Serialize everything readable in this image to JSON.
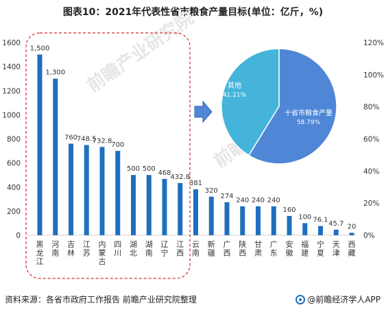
{
  "title": "图表10：2021年代表性省市粮食产量目标(单位：亿斤，%)",
  "footer": {
    "source": "资料来源：各省市政府工作报告 前瞻产业研究院整理",
    "brand": "@前瞻经济学人APP"
  },
  "watermark": "前瞻产业研究院",
  "chart_data": [
    {
      "type": "bar",
      "categories": [
        "黑龙江",
        "河南",
        "吉林",
        "江苏",
        "内蒙古",
        "四川",
        "湖北",
        "湖南",
        "辽宁",
        "江西",
        "云南",
        "新疆",
        "广西",
        "陕西",
        "甘肃",
        "广东",
        "安徽",
        "福建",
        "宁夏",
        "天津",
        "西藏"
      ],
      "values": [
        1500,
        1300,
        760,
        748.5,
        732.8,
        700,
        500,
        500,
        468,
        432.8,
        381,
        320,
        274,
        240,
        240,
        240,
        160,
        100,
        76.1,
        45.7,
        20
      ],
      "value_labels": [
        "1,500",
        "1,300",
        "760",
        "748.5",
        "732.8",
        "700",
        "500",
        "500",
        "468",
        "432.8",
        "381",
        "320",
        "274",
        "240",
        "240",
        "240",
        "160",
        "100",
        "76.1",
        "45.7",
        "20"
      ],
      "ylim": [
        0,
        1600
      ],
      "yticks": [
        "0",
        "200",
        "400",
        "600",
        "800",
        "1000",
        "1200",
        "1400",
        "1600"
      ],
      "y2ticks": [
        "0%",
        "20%",
        "40%",
        "60%",
        "80%",
        "100%",
        "120%"
      ],
      "color": "#1f6fbf"
    },
    {
      "type": "pie",
      "slices": [
        {
          "name": "十省市粮食产量",
          "value": 58.79,
          "label": "58.79%",
          "color": "#4f87d6"
        },
        {
          "name": "其他",
          "value": 41.21,
          "label": "41.21%",
          "color": "#45b4da"
        }
      ]
    }
  ]
}
